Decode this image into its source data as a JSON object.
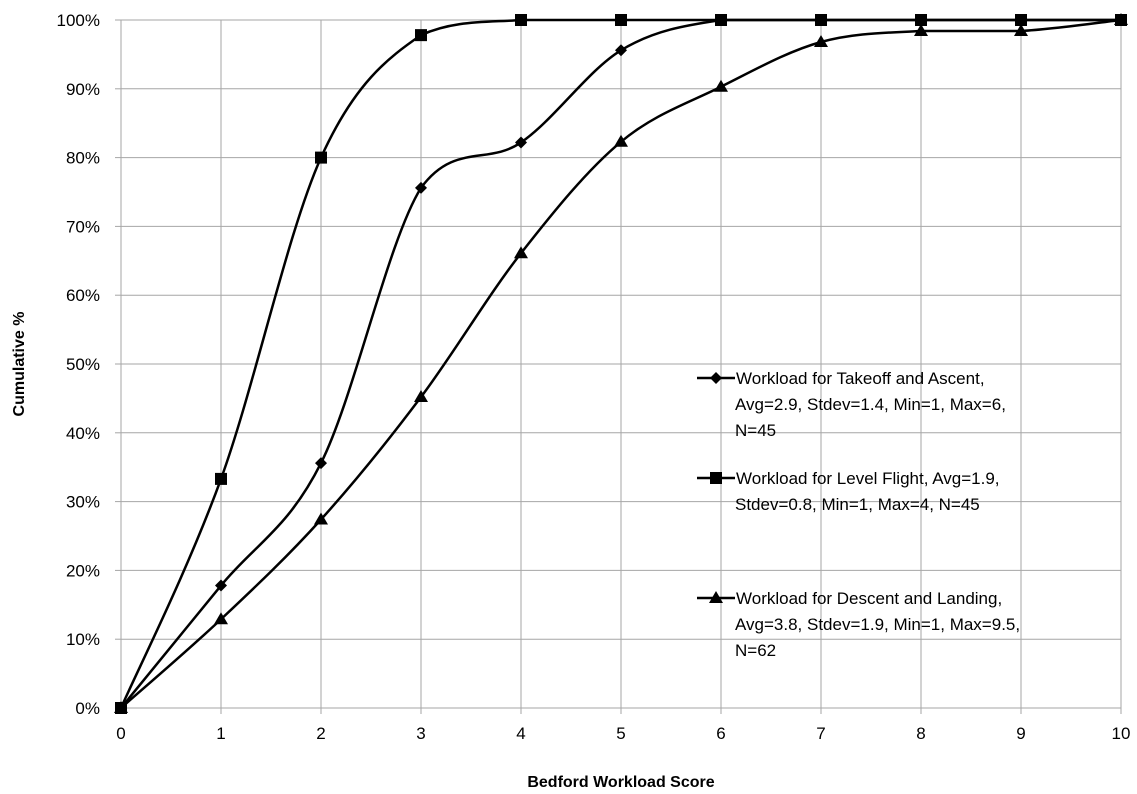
{
  "chart_data": {
    "type": "line",
    "xlabel": "Bedford Workload Score",
    "ylabel": "Cumulative %",
    "xlim": [
      0,
      10
    ],
    "ylim": [
      0,
      100
    ],
    "x_ticks": [
      "0",
      "1",
      "2",
      "3",
      "4",
      "5",
      "6",
      "7",
      "8",
      "9",
      "10"
    ],
    "y_ticks": [
      "0%",
      "10%",
      "20%",
      "30%",
      "40%",
      "50%",
      "60%",
      "70%",
      "80%",
      "90%",
      "100%"
    ],
    "grid": true,
    "legend_position": "right",
    "series": [
      {
        "name": "Workload for Takeoff and Ascent, Avg=2.9, Stdev=1.4, Min=1, Max=6, N=45",
        "legend_lines": [
          "Workload for Takeoff and Ascent,",
          "Avg=2.9, Stdev=1.4, Min=1, Max=6,",
          "N=45"
        ],
        "marker": "diamond",
        "x": [
          0,
          1,
          2,
          3,
          4,
          5,
          6,
          7,
          8,
          9,
          10
        ],
        "y": [
          0,
          17.8,
          35.6,
          75.6,
          82.2,
          95.6,
          100,
          100,
          100,
          100,
          100
        ]
      },
      {
        "name": "Workload for Level Flight, Avg=1.9, Stdev=0.8, Min=1, Max=4, N=45",
        "legend_lines": [
          "Workload for Level Flight, Avg=1.9,",
          "Stdev=0.8, Min=1, Max=4, N=45"
        ],
        "marker": "square",
        "x": [
          0,
          1,
          2,
          3,
          4,
          5,
          6,
          7,
          8,
          9,
          10
        ],
        "y": [
          0,
          33.3,
          80.0,
          97.8,
          100,
          100,
          100,
          100,
          100,
          100,
          100
        ]
      },
      {
        "name": "Workload for Descent and Landing, Avg=3.8, Stdev=1.9, Min=1, Max=9.5, N=62",
        "legend_lines": [
          "Workload for Descent and Landing,",
          "Avg=3.8, Stdev=1.9, Min=1, Max=9.5,",
          "N=62"
        ],
        "marker": "triangle",
        "x": [
          0,
          1,
          2,
          3,
          4,
          5,
          6,
          7,
          8,
          9,
          10
        ],
        "y": [
          0,
          12.9,
          27.4,
          45.2,
          66.1,
          82.3,
          90.3,
          96.8,
          98.4,
          98.4,
          100
        ]
      }
    ],
    "colors": {
      "line": "#000000",
      "grid": "#a6a6a6",
      "background": "#ffffff"
    }
  }
}
